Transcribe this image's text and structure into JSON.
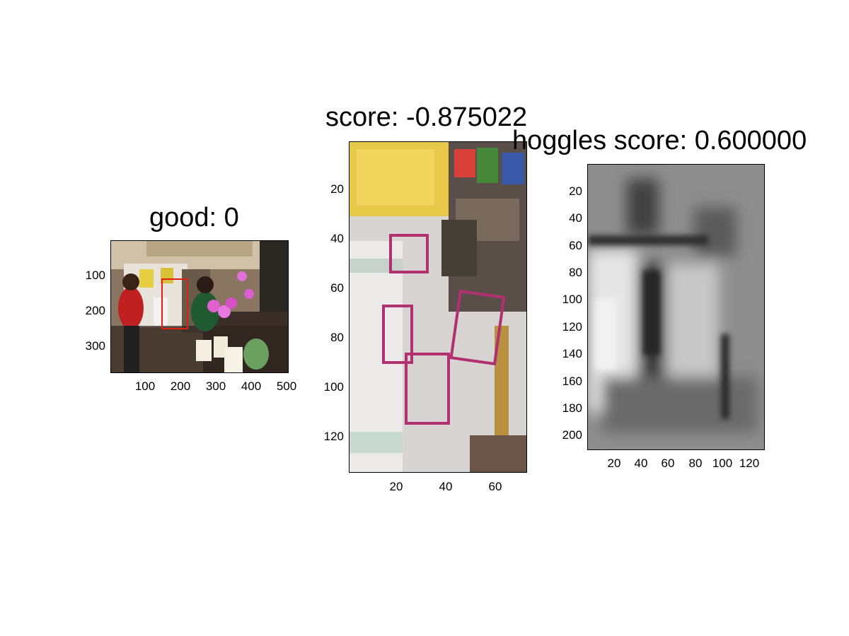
{
  "panels": [
    {
      "title": "good: 0",
      "image": "kitchen photo with two people, candles and pink orchids; red detection box near center",
      "xticks": [
        "100",
        "200",
        "300",
        "400",
        "500"
      ],
      "yticks": [
        "100",
        "200",
        "300"
      ]
    },
    {
      "title": "score: -0.875022",
      "image": "cropped patch of refrigerator door with magnets, yellow note and pink outlined rectangles",
      "xticks": [
        "20",
        "40",
        "60"
      ],
      "yticks": [
        "20",
        "40",
        "60",
        "80",
        "100",
        "120"
      ]
    },
    {
      "title": "hoggles score: 0.600000",
      "image": "grayscale HOG inversion visualization",
      "xticks": [
        "20",
        "40",
        "60",
        "80",
        "100",
        "120"
      ],
      "yticks": [
        "20",
        "40",
        "60",
        "80",
        "100",
        "120",
        "140",
        "160",
        "180",
        "200"
      ]
    }
  ],
  "colors": {
    "detection_box": "#e02010",
    "magnet_outline": "#b03070"
  }
}
